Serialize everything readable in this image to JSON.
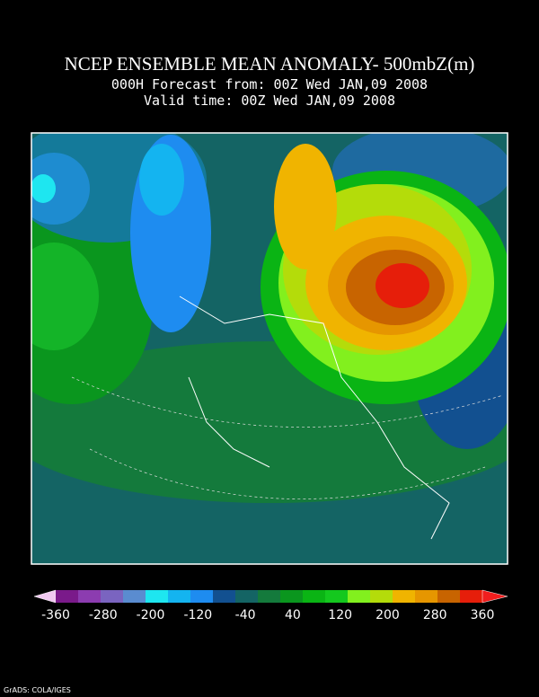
{
  "header": {
    "title": "NCEP ENSEMBLE MEAN ANOMALY- 500mbZ(m)",
    "line2": "000H Forecast from: 00Z Wed JAN,09 2008",
    "line3": "Valid time: 00Z Wed JAN,09 2008"
  },
  "colorbar": {
    "levels": [
      -360,
      -280,
      -200,
      -120,
      -40,
      40,
      120,
      200,
      280,
      360
    ],
    "colors": [
      "#f0c8f0",
      "#7a1a8a",
      "#8c3cb0",
      "#7a64c0",
      "#5a8cd0",
      "#1ee6f0",
      "#14b4f0",
      "#1e8cf0",
      "#125090",
      "#146464",
      "#147a3c",
      "#0a961e",
      "#0ab414",
      "#14c81e",
      "#82f01e",
      "#b4dc0a",
      "#f0b400",
      "#e69600",
      "#c86400",
      "#e61e0a",
      "#f01e1e"
    ]
  },
  "footer": "GrADS: COLA/IGES"
}
